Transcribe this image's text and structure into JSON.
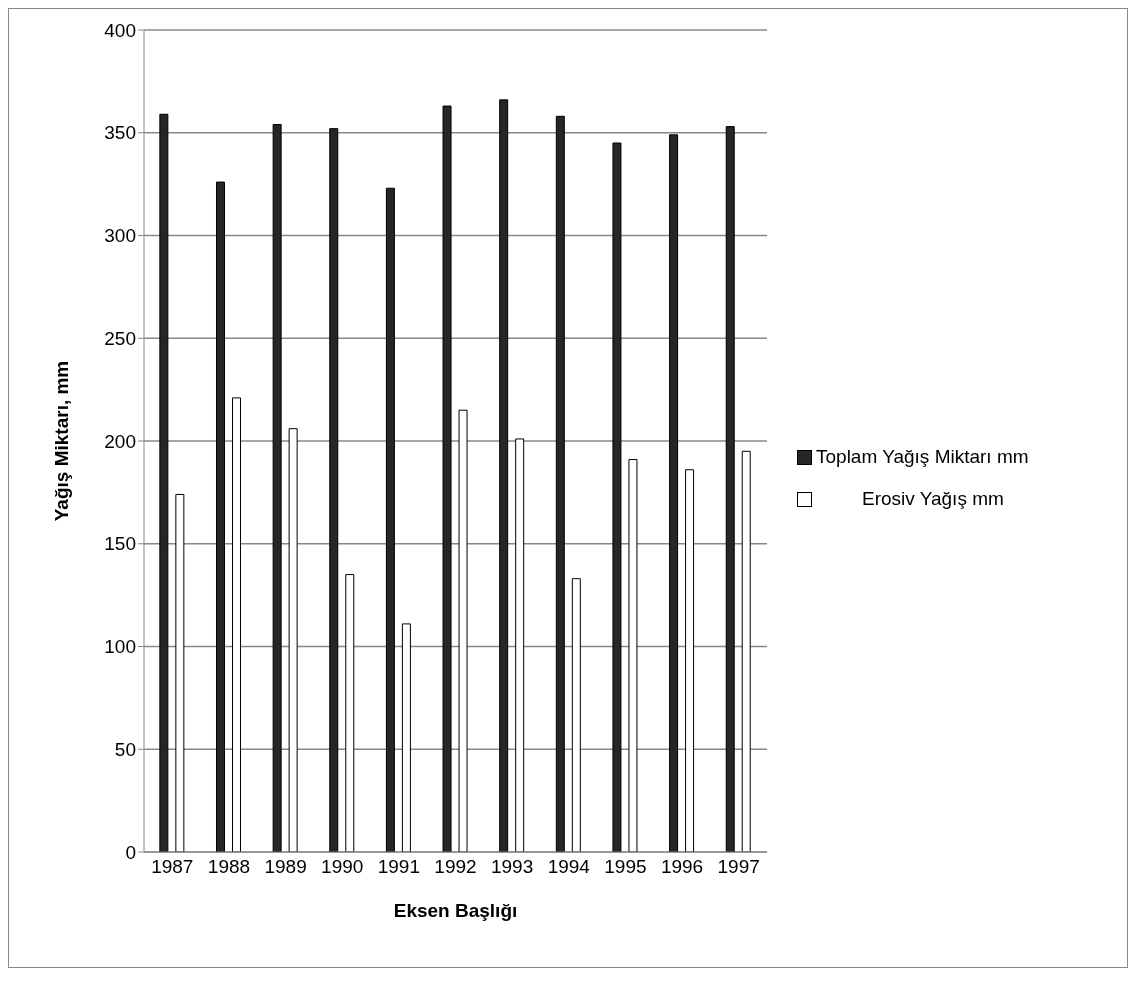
{
  "chart_data": {
    "type": "bar",
    "xlabel": "Eksen Başlığı",
    "ylabel": "Yağış Miktarı, mm",
    "categories": [
      "1987",
      "1988",
      "1989",
      "1990",
      "1991",
      "1992",
      "1993",
      "1994",
      "1995",
      "1996",
      "1997"
    ],
    "series": [
      {
        "name": "Toplam Yağış Miktarı mm",
        "color": "#262626",
        "values": [
          359,
          326,
          354,
          352,
          323,
          363,
          366,
          358,
          345,
          349,
          353
        ]
      },
      {
        "name": "Erosiv Yağış mm",
        "color": "#ffffff",
        "values": [
          174,
          221,
          206,
          135,
          111,
          215,
          201,
          133,
          191,
          186,
          195
        ]
      }
    ],
    "ylim": [
      0,
      400
    ],
    "yticks": [
      0,
      50,
      100,
      150,
      200,
      250,
      300,
      350,
      400
    ],
    "grid": "y",
    "legend": "right"
  }
}
